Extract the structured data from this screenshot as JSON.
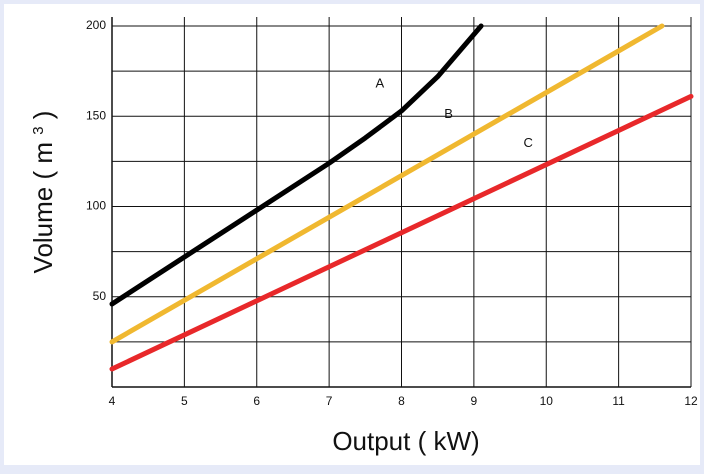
{
  "chart_data": {
    "type": "line",
    "xlabel": "Output ( kW)",
    "ylabel": "Volume  ( m ",
    "ylabel_sup": "3",
    "ylabel_close": " )",
    "xlim": [
      4,
      12
    ],
    "ylim": [
      0,
      205
    ],
    "x_ticks": [
      4,
      5,
      6,
      7,
      8,
      9,
      10,
      11,
      12
    ],
    "y_ticks": [
      50,
      100,
      150,
      200
    ],
    "grid": true,
    "series": [
      {
        "name": "A",
        "color": "#000000",
        "points": [
          [
            4,
            46
          ],
          [
            5,
            72
          ],
          [
            6,
            98
          ],
          [
            7,
            124
          ],
          [
            7.5,
            138
          ],
          [
            8,
            153
          ],
          [
            8.5,
            172
          ],
          [
            9.1,
            200
          ]
        ]
      },
      {
        "name": "B",
        "color": "#f0b830",
        "points": [
          [
            4,
            25
          ],
          [
            11.6,
            200
          ]
        ]
      },
      {
        "name": "C",
        "color": "#e8282a",
        "points": [
          [
            4,
            10
          ],
          [
            12,
            161
          ]
        ]
      }
    ],
    "series_labels": [
      {
        "text": "A",
        "x": 7.7,
        "y": 166
      },
      {
        "text": "B",
        "x": 8.65,
        "y": 149
      },
      {
        "text": "C",
        "x": 9.75,
        "y": 133
      }
    ]
  }
}
